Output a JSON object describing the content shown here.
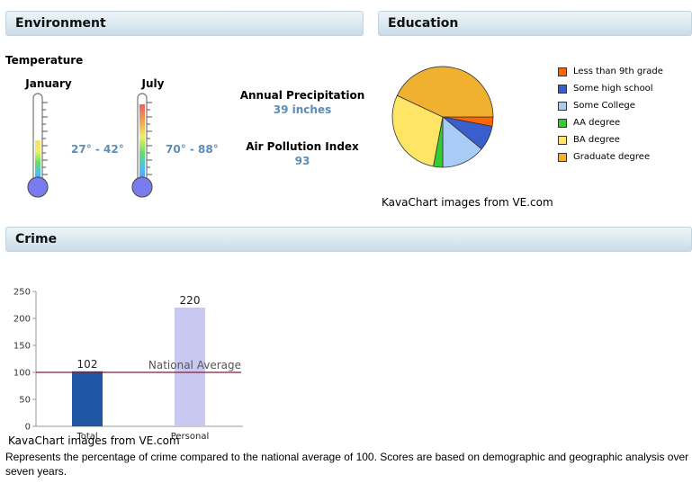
{
  "environment": {
    "header": "Environment",
    "temperature_title": "Temperature",
    "months": [
      {
        "name": "January",
        "range": "27° - 42°",
        "fill_fraction": 0.48
      },
      {
        "name": "July",
        "range": "70° - 88°",
        "fill_fraction": 0.85
      }
    ],
    "precipitation": {
      "label": "Annual Precipitation",
      "value": "39 inches"
    },
    "pollution": {
      "label": "Air Pollution Index",
      "value": "93"
    }
  },
  "education": {
    "header": "Education",
    "credit": "KavaChart images from VE.com",
    "chart_data": {
      "type": "pie",
      "slices": [
        {
          "label": "Less than 9th grade",
          "value": 3,
          "color": "#ff6600"
        },
        {
          "label": "Some high school",
          "value": 8,
          "color": "#3a5fcd"
        },
        {
          "label": "Some College",
          "value": 14,
          "color": "#a8ccf5"
        },
        {
          "label": "AA degree",
          "value": 3,
          "color": "#33cc33"
        },
        {
          "label": "BA degree",
          "value": 29,
          "color": "#ffe566"
        },
        {
          "label": "Graduate degree",
          "value": 43,
          "color": "#f0b030"
        }
      ]
    }
  },
  "crime": {
    "header": "Crime",
    "credit": "KavaChart images from VE.com",
    "description": "Represents the percentage of crime compared to the national average of 100. Scores are based on demographic and geographic analysis over seven years.",
    "chart_data": {
      "type": "bar",
      "categories": [
        "Total",
        "Personal"
      ],
      "values": [
        102,
        220
      ],
      "colors": [
        "#1f57a4",
        "#c8c8f0"
      ],
      "ylim": [
        0,
        250
      ],
      "yticks": [
        0,
        50,
        100,
        150,
        200,
        250
      ],
      "reference_line": {
        "value": 100,
        "label": "National Average",
        "color": "#8b1a3a"
      }
    }
  }
}
